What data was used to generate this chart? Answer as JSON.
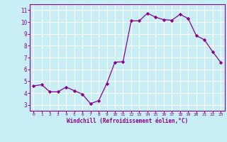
{
  "x": [
    0,
    1,
    2,
    3,
    4,
    5,
    6,
    7,
    8,
    9,
    10,
    11,
    12,
    13,
    14,
    15,
    16,
    17,
    18,
    19,
    20,
    21,
    22,
    23
  ],
  "y": [
    4.6,
    4.7,
    4.1,
    4.1,
    4.5,
    4.2,
    3.9,
    3.1,
    3.35,
    4.8,
    6.6,
    6.65,
    10.1,
    10.1,
    10.75,
    10.4,
    10.2,
    10.15,
    10.65,
    10.3,
    8.85,
    8.5,
    7.5,
    6.6
  ],
  "line_color": "#8B008B",
  "marker": "D",
  "marker_size": 2.2,
  "bg_color": "#c8eef5",
  "grid_color": "#ffffff",
  "xlabel": "Windchill (Refroidissement éolien,°C)",
  "ylim": [
    2.5,
    11.5
  ],
  "xlim": [
    -0.5,
    23.5
  ],
  "yticks": [
    3,
    4,
    5,
    6,
    7,
    8,
    9,
    10,
    11
  ],
  "xticks": [
    0,
    1,
    2,
    3,
    4,
    5,
    6,
    7,
    8,
    9,
    10,
    11,
    12,
    13,
    14,
    15,
    16,
    17,
    18,
    19,
    20,
    21,
    22,
    23
  ],
  "tick_color": "#8B008B",
  "label_color": "#8B008B",
  "axis_color": "#8B008B",
  "linewidth": 0.9
}
